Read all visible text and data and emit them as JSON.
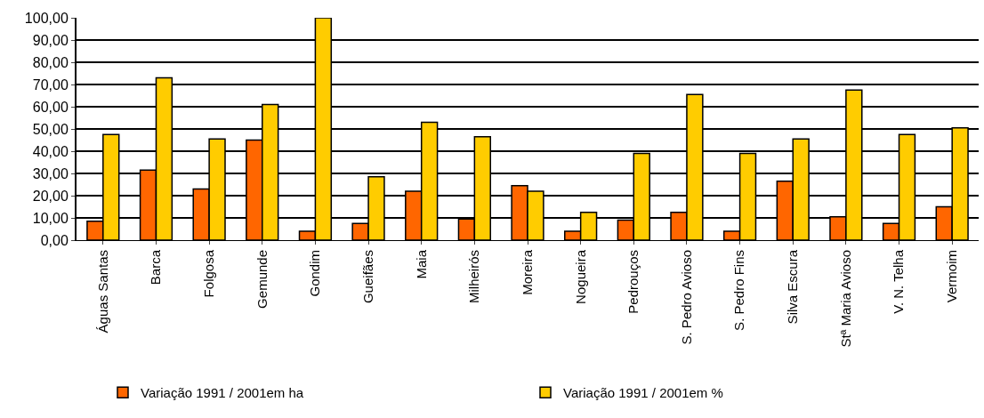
{
  "chart_data": {
    "type": "bar",
    "categories": [
      "Águas Santas",
      "Barca",
      "Folgosa",
      "Gemunde",
      "Gondim",
      "Gueifães",
      "Maia",
      "Milheirós",
      "Moreira",
      "Nogueira",
      "Pedrouços",
      "S. Pedro Avioso",
      "S. Pedro Fins",
      "Silva Escura",
      "Stª Maria Avioso",
      "V. N. Telha",
      "Vermoim"
    ],
    "series": [
      {
        "name": "Variação 1991 / 2001em ha",
        "color": "#ff6600",
        "values": [
          8.5,
          31.5,
          23,
          45,
          4,
          7.5,
          22,
          9.5,
          24.5,
          4,
          9,
          12.5,
          4,
          26.5,
          10.5,
          7.5,
          15
        ]
      },
      {
        "name": "Variação 1991 / 2001em %",
        "color": "#ffcc00",
        "values": [
          47.5,
          73,
          45.5,
          61,
          100,
          28.5,
          53,
          46.5,
          22,
          12.5,
          39,
          65.5,
          39,
          45.5,
          67.5,
          47.5,
          50.5
        ]
      }
    ],
    "ylim": [
      0,
      100
    ],
    "yticks": [
      {
        "value": 0,
        "label": "0,00"
      },
      {
        "value": 10,
        "label": "10,00"
      },
      {
        "value": 20,
        "label": "20,00"
      },
      {
        "value": 30,
        "label": "30,00"
      },
      {
        "value": 40,
        "label": "40,00"
      },
      {
        "value": 50,
        "label": "50,00"
      },
      {
        "value": 60,
        "label": "60,00"
      },
      {
        "value": 70,
        "label": "70,00"
      },
      {
        "value": 80,
        "label": "80,00"
      },
      {
        "value": 90,
        "label": "90,00"
      },
      {
        "value": 100,
        "label": "100,00"
      }
    ],
    "grid": "y",
    "legend": "bottom"
  }
}
